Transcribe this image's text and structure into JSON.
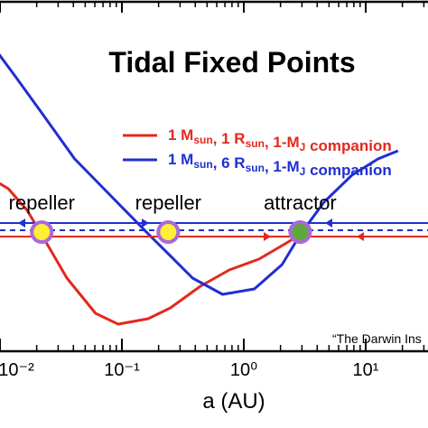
{
  "chart_data": {
    "type": "line",
    "title": "Tidal Fixed Points",
    "xlabel": "a (AU)",
    "x_scale": "log",
    "x_ticks": [
      "10⁻²",
      "10⁻¹",
      "10⁰",
      "10¹"
    ],
    "ylabel": "",
    "grid": false,
    "legend_position": "top-right",
    "series": [
      {
        "name": "1 Msun, 1 Rsun, 1-MJ companion",
        "color": "#e3281e",
        "x": [
          0.0083,
          0.0117,
          0.0167,
          0.022,
          0.0354,
          0.0608,
          0.0933,
          0.164,
          0.25,
          0.44,
          0.76,
          1.33,
          2.25,
          2.9
        ],
        "y_rel": [
          0.64,
          0.6,
          0.52,
          0.43,
          0.27,
          0.14,
          0.1,
          0.12,
          0.16,
          0.24,
          0.3,
          0.34,
          0.4,
          0.43
        ]
      },
      {
        "name": "1 Msun, 6 Rsun, 1-MJ companion",
        "color": "#1f2fd0",
        "x": [
          0.0083,
          0.0131,
          0.022,
          0.041,
          0.087,
          0.167,
          0.24,
          0.38,
          0.67,
          1.22,
          2.06,
          2.9,
          4.54,
          7.7,
          12.6,
          18.4
        ],
        "y_rel": [
          1.14,
          1.02,
          0.88,
          0.71,
          0.56,
          0.43,
          0.36,
          0.27,
          0.21,
          0.23,
          0.32,
          0.43,
          0.55,
          0.65,
          0.71,
          0.74
        ]
      }
    ],
    "fixed_points": [
      {
        "label": "repeller",
        "x": 0.022,
        "fill": "#ffee33"
      },
      {
        "label": "repeller",
        "x": 0.24,
        "fill": "#ffee33"
      },
      {
        "label": "attractor",
        "x": 2.9,
        "fill": "#5fa83c"
      }
    ],
    "legend": [
      {
        "main1": "1 M",
        "sub1": "sun",
        "main2": ", 1 R",
        "sub2": "sun",
        "main3": ", 1-M",
        "sub3": "J",
        "tail": " companion",
        "color": "#e3281e"
      },
      {
        "main1": "1 M",
        "sub1": "sun",
        "main2": ", 6 R",
        "sub2": "sun",
        "main3": ", 1-M",
        "sub3": "J",
        "tail": " companion",
        "color": "#1f2fd0"
      }
    ],
    "credit": "“The Darwin Ins",
    "colors": {
      "red": "#e3281e",
      "blue": "#1f2fd0",
      "ring": "#a86ad8",
      "yellow": "#ffee33",
      "green": "#5fa83c"
    }
  }
}
